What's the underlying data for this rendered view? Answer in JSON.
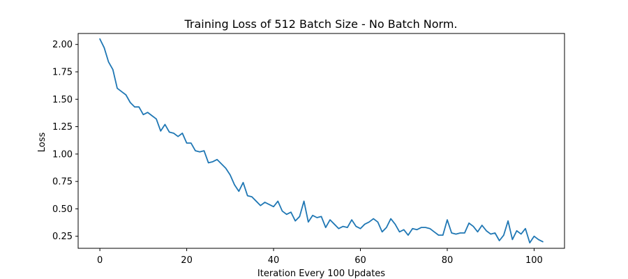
{
  "chart_data": {
    "type": "line",
    "title": "Training Loss of 512 Batch Size - No Batch Norm.",
    "xlabel": "Iteration Every 100 Updates",
    "ylabel": "Loss",
    "xlim": [
      -5,
      107
    ],
    "ylim": [
      0.14,
      2.1
    ],
    "xticks": [
      0,
      20,
      40,
      60,
      80,
      100
    ],
    "yticks": [
      0.25,
      0.5,
      0.75,
      1.0,
      1.25,
      1.5,
      1.75,
      2.0
    ],
    "ytick_labels": [
      "0.25",
      "0.50",
      "0.75",
      "1.00",
      "1.25",
      "1.50",
      "1.75",
      "2.00"
    ],
    "grid": false,
    "series": [
      {
        "color": "#1f77b4",
        "x": [
          0,
          1,
          2,
          3,
          4,
          5,
          6,
          7,
          8,
          9,
          10,
          11,
          12,
          13,
          14,
          15,
          16,
          17,
          18,
          19,
          20,
          21,
          22,
          23,
          24,
          25,
          26,
          27,
          28,
          29,
          30,
          31,
          32,
          33,
          34,
          35,
          36,
          37,
          38,
          39,
          40,
          41,
          42,
          43,
          44,
          45,
          46,
          47,
          48,
          49,
          50,
          51,
          52,
          53,
          54,
          55,
          56,
          57,
          58,
          59,
          60,
          61,
          62,
          63,
          64,
          65,
          66,
          67,
          68,
          69,
          70,
          71,
          72,
          73,
          74,
          75,
          76,
          77,
          78,
          79,
          80,
          81,
          82,
          83,
          84,
          85,
          86,
          87,
          88,
          89,
          90,
          91,
          92,
          93,
          94,
          95,
          96,
          97,
          98,
          99,
          100,
          101,
          102
        ],
        "values": [
          2.05,
          1.97,
          1.84,
          1.77,
          1.6,
          1.57,
          1.54,
          1.47,
          1.43,
          1.43,
          1.36,
          1.38,
          1.35,
          1.32,
          1.21,
          1.27,
          1.2,
          1.19,
          1.16,
          1.19,
          1.1,
          1.1,
          1.03,
          1.02,
          1.03,
          0.92,
          0.93,
          0.95,
          0.91,
          0.87,
          0.81,
          0.72,
          0.66,
          0.74,
          0.62,
          0.61,
          0.57,
          0.53,
          0.56,
          0.54,
          0.52,
          0.57,
          0.48,
          0.45,
          0.47,
          0.39,
          0.43,
          0.57,
          0.38,
          0.44,
          0.42,
          0.43,
          0.33,
          0.4,
          0.36,
          0.32,
          0.34,
          0.33,
          0.4,
          0.34,
          0.32,
          0.36,
          0.38,
          0.41,
          0.38,
          0.29,
          0.33,
          0.41,
          0.36,
          0.29,
          0.31,
          0.26,
          0.32,
          0.31,
          0.33,
          0.33,
          0.32,
          0.29,
          0.26,
          0.26,
          0.4,
          0.28,
          0.27,
          0.28,
          0.28,
          0.37,
          0.34,
          0.29,
          0.35,
          0.3,
          0.27,
          0.28,
          0.21,
          0.26,
          0.39,
          0.22,
          0.3,
          0.27,
          0.32,
          0.19,
          0.25,
          0.22,
          0.2
        ]
      }
    ]
  }
}
